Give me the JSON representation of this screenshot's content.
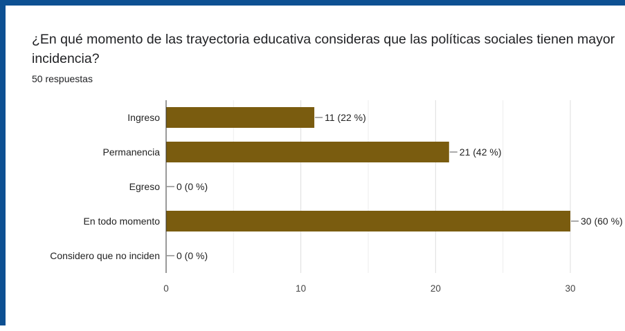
{
  "question": "¿En qué momento de las trayectoria educativa consideras que las políticas sociales tienen mayor incidencia?",
  "responses": "50 respuestas",
  "colors": {
    "bar": "#7a5c0f",
    "border": "#0d5092",
    "grid": "#e6e6e6",
    "axis": "#333333"
  },
  "chart_data": {
    "type": "bar",
    "orientation": "horizontal",
    "categories": [
      "Ingreso",
      "Permanencia",
      "Egreso",
      "En todo momento",
      "Considero que no inciden"
    ],
    "values": [
      11,
      21,
      0,
      30,
      0
    ],
    "data_labels": [
      "11 (22 %)",
      "21 (42 %)",
      "0 (0 %)",
      "30 (60 %)",
      "0 (0 %)"
    ],
    "xlim": [
      0,
      30
    ],
    "xticks": [
      0,
      10,
      20,
      30
    ],
    "grid": true
  }
}
